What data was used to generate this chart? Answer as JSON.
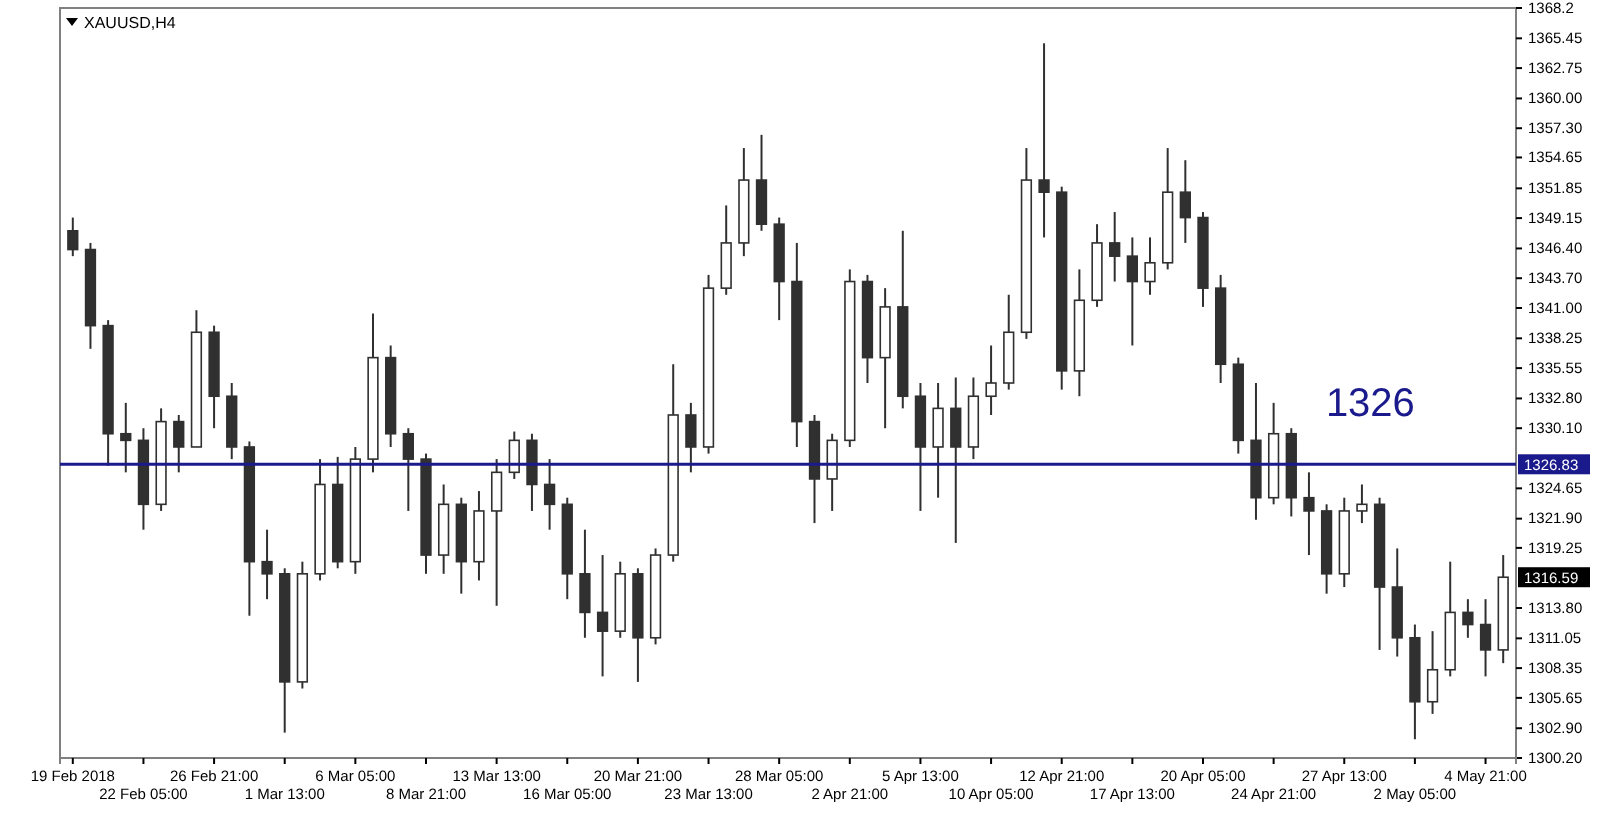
{
  "chart_data": {
    "type": "candlestick",
    "title": "XAUUSD,H4",
    "categories": [
      "19 Feb 2018",
      null,
      null,
      null,
      "22 Feb 05:00",
      null,
      null,
      null,
      "26 Feb 21:00",
      null,
      null,
      null,
      "1 Mar 13:00",
      null,
      null,
      null,
      "6 Mar 05:00",
      null,
      null,
      null,
      "8 Mar 21:00",
      null,
      null,
      null,
      "13 Mar 13:00",
      null,
      null,
      null,
      "16 Mar 05:00",
      null,
      null,
      null,
      "20 Mar 21:00",
      null,
      null,
      null,
      "23 Mar 13:00",
      null,
      null,
      null,
      "28 Mar 05:00",
      null,
      null,
      null,
      "2 Apr 21:00",
      null,
      null,
      null,
      "5 Apr 13:00",
      null,
      null,
      null,
      "10 Apr 05:00",
      null,
      null,
      null,
      "12 Apr 21:00",
      null,
      null,
      null,
      "17 Apr 13:00",
      null,
      null,
      null,
      "20 Apr 05:00",
      null,
      null,
      null,
      "24 Apr 21:00",
      null,
      null,
      null,
      "27 Apr 13:00",
      null,
      null,
      null,
      "2 May 05:00",
      null,
      null,
      null,
      "4 May 21:00",
      null
    ],
    "series": [
      {
        "color": "#303030",
        "ohlc": [
          [
            1348.0,
            1349.2,
            1345.7,
            1346.3
          ],
          [
            1346.3,
            1346.9,
            1337.3,
            1339.4
          ],
          [
            1339.4,
            1339.9,
            1326.7,
            1329.6
          ],
          [
            1329.6,
            1332.4,
            1326.1,
            1329.0
          ],
          [
            1329.0,
            1330.1,
            1320.9,
            1323.2
          ],
          [
            1323.2,
            1331.9,
            1322.6,
            1330.7
          ],
          [
            1330.7,
            1331.3,
            1326.1,
            1328.4
          ],
          [
            1328.4,
            1340.8,
            1328.4,
            1338.8
          ],
          [
            1338.8,
            1339.4,
            1330.1,
            1333.0
          ],
          [
            1333.0,
            1334.2,
            1327.3,
            1328.4
          ],
          [
            1328.4,
            1328.9,
            1313.1,
            1318.0
          ],
          [
            1318.0,
            1320.9,
            1314.6,
            1316.9
          ],
          [
            1316.9,
            1317.4,
            1302.5,
            1307.1
          ],
          [
            1307.1,
            1318.0,
            1306.5,
            1316.9
          ],
          [
            1316.9,
            1327.3,
            1316.3,
            1325.0
          ],
          [
            1325.0,
            1327.5,
            1317.4,
            1318.0
          ],
          [
            1318.0,
            1328.4,
            1316.9,
            1327.3
          ],
          [
            1327.3,
            1340.5,
            1326.1,
            1336.5
          ],
          [
            1336.5,
            1337.6,
            1328.4,
            1329.6
          ],
          [
            1329.6,
            1330.1,
            1322.6,
            1327.3
          ],
          [
            1327.3,
            1327.8,
            1316.9,
            1318.6
          ],
          [
            1318.6,
            1325.0,
            1316.9,
            1323.2
          ],
          [
            1323.2,
            1323.8,
            1315.1,
            1318.0
          ],
          [
            1318.0,
            1324.4,
            1316.3,
            1322.6
          ],
          [
            1322.6,
            1327.3,
            1314.0,
            1326.1
          ],
          [
            1326.1,
            1329.8,
            1325.5,
            1329.0
          ],
          [
            1329.0,
            1329.6,
            1322.6,
            1325.0
          ],
          [
            1325.0,
            1327.3,
            1320.9,
            1323.2
          ],
          [
            1323.2,
            1323.8,
            1314.6,
            1316.9
          ],
          [
            1316.9,
            1320.9,
            1311.1,
            1313.4
          ],
          [
            1313.4,
            1318.6,
            1307.6,
            1311.7
          ],
          [
            1311.7,
            1318.0,
            1311.1,
            1316.9
          ],
          [
            1316.9,
            1317.4,
            1307.1,
            1311.1
          ],
          [
            1311.1,
            1319.2,
            1310.5,
            1318.6
          ],
          [
            1318.6,
            1335.9,
            1318.0,
            1331.3
          ],
          [
            1331.3,
            1332.4,
            1326.1,
            1328.4
          ],
          [
            1328.4,
            1344.0,
            1327.8,
            1342.8
          ],
          [
            1342.8,
            1350.3,
            1342.2,
            1346.9
          ],
          [
            1346.9,
            1355.5,
            1345.7,
            1352.6
          ],
          [
            1352.6,
            1356.7,
            1348.0,
            1348.6
          ],
          [
            1348.6,
            1349.2,
            1339.9,
            1343.4
          ],
          [
            1343.4,
            1346.9,
            1328.4,
            1330.7
          ],
          [
            1330.7,
            1331.3,
            1321.5,
            1325.5
          ],
          [
            1325.5,
            1329.6,
            1322.6,
            1329.0
          ],
          [
            1329.0,
            1344.5,
            1328.4,
            1343.4
          ],
          [
            1343.4,
            1344.0,
            1334.2,
            1336.5
          ],
          [
            1336.5,
            1342.8,
            1330.1,
            1341.1
          ],
          [
            1341.1,
            1348.0,
            1331.9,
            1333.0
          ],
          [
            1333.0,
            1334.2,
            1322.6,
            1328.4
          ],
          [
            1328.4,
            1334.2,
            1323.8,
            1331.9
          ],
          [
            1331.9,
            1334.7,
            1319.7,
            1328.4
          ],
          [
            1328.4,
            1334.7,
            1327.3,
            1333.0
          ],
          [
            1333.0,
            1337.6,
            1331.3,
            1334.2
          ],
          [
            1334.2,
            1342.2,
            1333.6,
            1338.8
          ],
          [
            1338.8,
            1355.5,
            1338.2,
            1352.6
          ],
          [
            1352.6,
            1365.0,
            1347.4,
            1351.5
          ],
          [
            1351.5,
            1352.0,
            1333.6,
            1335.3
          ],
          [
            1335.3,
            1344.5,
            1333.0,
            1341.7
          ],
          [
            1341.7,
            1348.6,
            1341.1,
            1346.9
          ],
          [
            1346.9,
            1349.7,
            1343.4,
            1345.7
          ],
          [
            1345.7,
            1347.4,
            1337.6,
            1343.4
          ],
          [
            1343.4,
            1347.4,
            1342.2,
            1345.1
          ],
          [
            1345.1,
            1355.5,
            1344.5,
            1351.5
          ],
          [
            1351.5,
            1354.4,
            1346.9,
            1349.2
          ],
          [
            1349.2,
            1349.7,
            1341.1,
            1342.8
          ],
          [
            1342.8,
            1344.0,
            1334.2,
            1335.9
          ],
          [
            1335.9,
            1336.5,
            1327.8,
            1329.0
          ],
          [
            1329.0,
            1334.2,
            1321.8,
            1323.8
          ],
          [
            1323.8,
            1332.4,
            1323.2,
            1329.6
          ],
          [
            1329.6,
            1330.1,
            1322.1,
            1323.8
          ],
          [
            1323.8,
            1326.1,
            1318.6,
            1322.6
          ],
          [
            1322.6,
            1323.2,
            1315.1,
            1316.9
          ],
          [
            1316.9,
            1323.8,
            1315.7,
            1322.6
          ],
          [
            1322.6,
            1325.0,
            1321.5,
            1323.2
          ],
          [
            1323.2,
            1323.8,
            1310.0,
            1315.7
          ],
          [
            1315.7,
            1319.2,
            1309.4,
            1311.1
          ],
          [
            1311.1,
            1312.3,
            1301.9,
            1305.3
          ],
          [
            1305.3,
            1311.7,
            1304.2,
            1308.2
          ],
          [
            1308.2,
            1318.0,
            1307.6,
            1313.4
          ],
          [
            1313.4,
            1314.6,
            1311.1,
            1312.3
          ],
          [
            1312.3,
            1314.6,
            1307.6,
            1310.0
          ],
          [
            1310.0,
            1318.6,
            1308.8,
            1316.59
          ]
        ]
      }
    ],
    "ylim": [
      1300.2,
      1368.2
    ],
    "yticks": [
      1368.2,
      {
        "value": 1365.45,
        "label": "1365.45"
      },
      {
        "value": 1362.75,
        "label": "1362.75"
      },
      {
        "value": 1360.0,
        "label": "1360.00"
      },
      {
        "value": 1357.3,
        "label": "1357.30"
      },
      {
        "value": 1354.65,
        "label": "1354.65"
      },
      {
        "value": 1351.85,
        "label": "1351.85"
      },
      {
        "value": 1349.15,
        "label": "1349.15"
      },
      {
        "value": 1346.4,
        "label": "1346.40"
      },
      {
        "value": 1343.7,
        "label": "1343.70"
      },
      {
        "value": 1341.0,
        "label": "1341.00"
      },
      {
        "value": 1338.25,
        "label": "1338.25"
      },
      {
        "value": 1335.55,
        "label": "1335.55"
      },
      {
        "value": 1332.8,
        "label": "1332.80"
      },
      {
        "value": 1330.1,
        "label": "1330.10"
      },
      {
        "value": 1324.65,
        "label": "1324.65"
      },
      {
        "value": 1321.9,
        "label": "1321.90"
      },
      {
        "value": 1319.25,
        "label": "1319.25"
      },
      {
        "value": 1313.8,
        "label": "1313.80"
      },
      {
        "value": 1311.05,
        "label": "1311.05"
      },
      {
        "value": 1308.35,
        "label": "1308.35"
      },
      {
        "value": 1305.65,
        "label": "1305.65"
      },
      {
        "value": 1302.9,
        "label": "1302.90"
      },
      {
        "value": 1300.2,
        "label": "1300.20"
      }
    ],
    "ref_lines": [
      {
        "axis": "y",
        "value": 1326.83,
        "label": "1326.83",
        "color": "#1a1a8c"
      }
    ],
    "annotations": [
      "1326",
      "1316.59"
    ],
    "grid": false
  }
}
